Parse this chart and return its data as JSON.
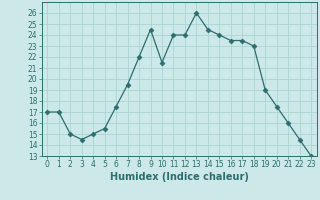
{
  "xlabel": "Humidex (Indice chaleur)",
  "x": [
    0,
    1,
    2,
    3,
    4,
    5,
    6,
    7,
    8,
    9,
    10,
    11,
    12,
    13,
    14,
    15,
    16,
    17,
    18,
    19,
    20,
    21,
    22,
    23
  ],
  "y": [
    17,
    17,
    15,
    14.5,
    15,
    15.5,
    17.5,
    19.5,
    22,
    24.5,
    21.5,
    24,
    24,
    26,
    24.5,
    24,
    23.5,
    23.5,
    23,
    19,
    17.5,
    16,
    14.5,
    13
  ],
  "line_color": "#2d6e6e",
  "marker": "D",
  "marker_size": 2.5,
  "bg_color": "#cce8e8",
  "grid_color": "#aad4d4",
  "ylim": [
    13,
    27
  ],
  "xlim": [
    -0.5,
    23.5
  ],
  "yticks": [
    13,
    14,
    15,
    16,
    17,
    18,
    19,
    20,
    21,
    22,
    23,
    24,
    25,
    26
  ],
  "xticks": [
    0,
    1,
    2,
    3,
    4,
    5,
    6,
    7,
    8,
    9,
    10,
    11,
    12,
    13,
    14,
    15,
    16,
    17,
    18,
    19,
    20,
    21,
    22,
    23
  ],
  "tick_fontsize": 5.5,
  "xlabel_fontsize": 7,
  "xlabel_fontweight": "bold"
}
